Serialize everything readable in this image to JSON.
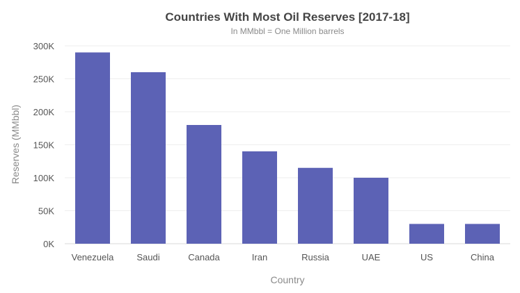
{
  "chart_data": {
    "type": "bar",
    "title": "Countries With Most Oil Reserves [2017-18]",
    "subtitle": "In MMbbl = One Million barrels",
    "xlabel": "Country",
    "ylabel": "Reserves (MMbbl)",
    "categories": [
      "Venezuela",
      "Saudi",
      "Canada",
      "Iran",
      "Russia",
      "UAE",
      "US",
      "China"
    ],
    "values": [
      290000,
      260000,
      180000,
      140000,
      115000,
      100000,
      30000,
      30000
    ],
    "ylim": [
      0,
      300000
    ],
    "yticks": [
      0,
      50000,
      100000,
      150000,
      200000,
      250000,
      300000
    ],
    "ytick_labels": [
      "0K",
      "50K",
      "100K",
      "150K",
      "200K",
      "250K",
      "300K"
    ],
    "grid": true,
    "bar_color": "#5c62b5"
  }
}
